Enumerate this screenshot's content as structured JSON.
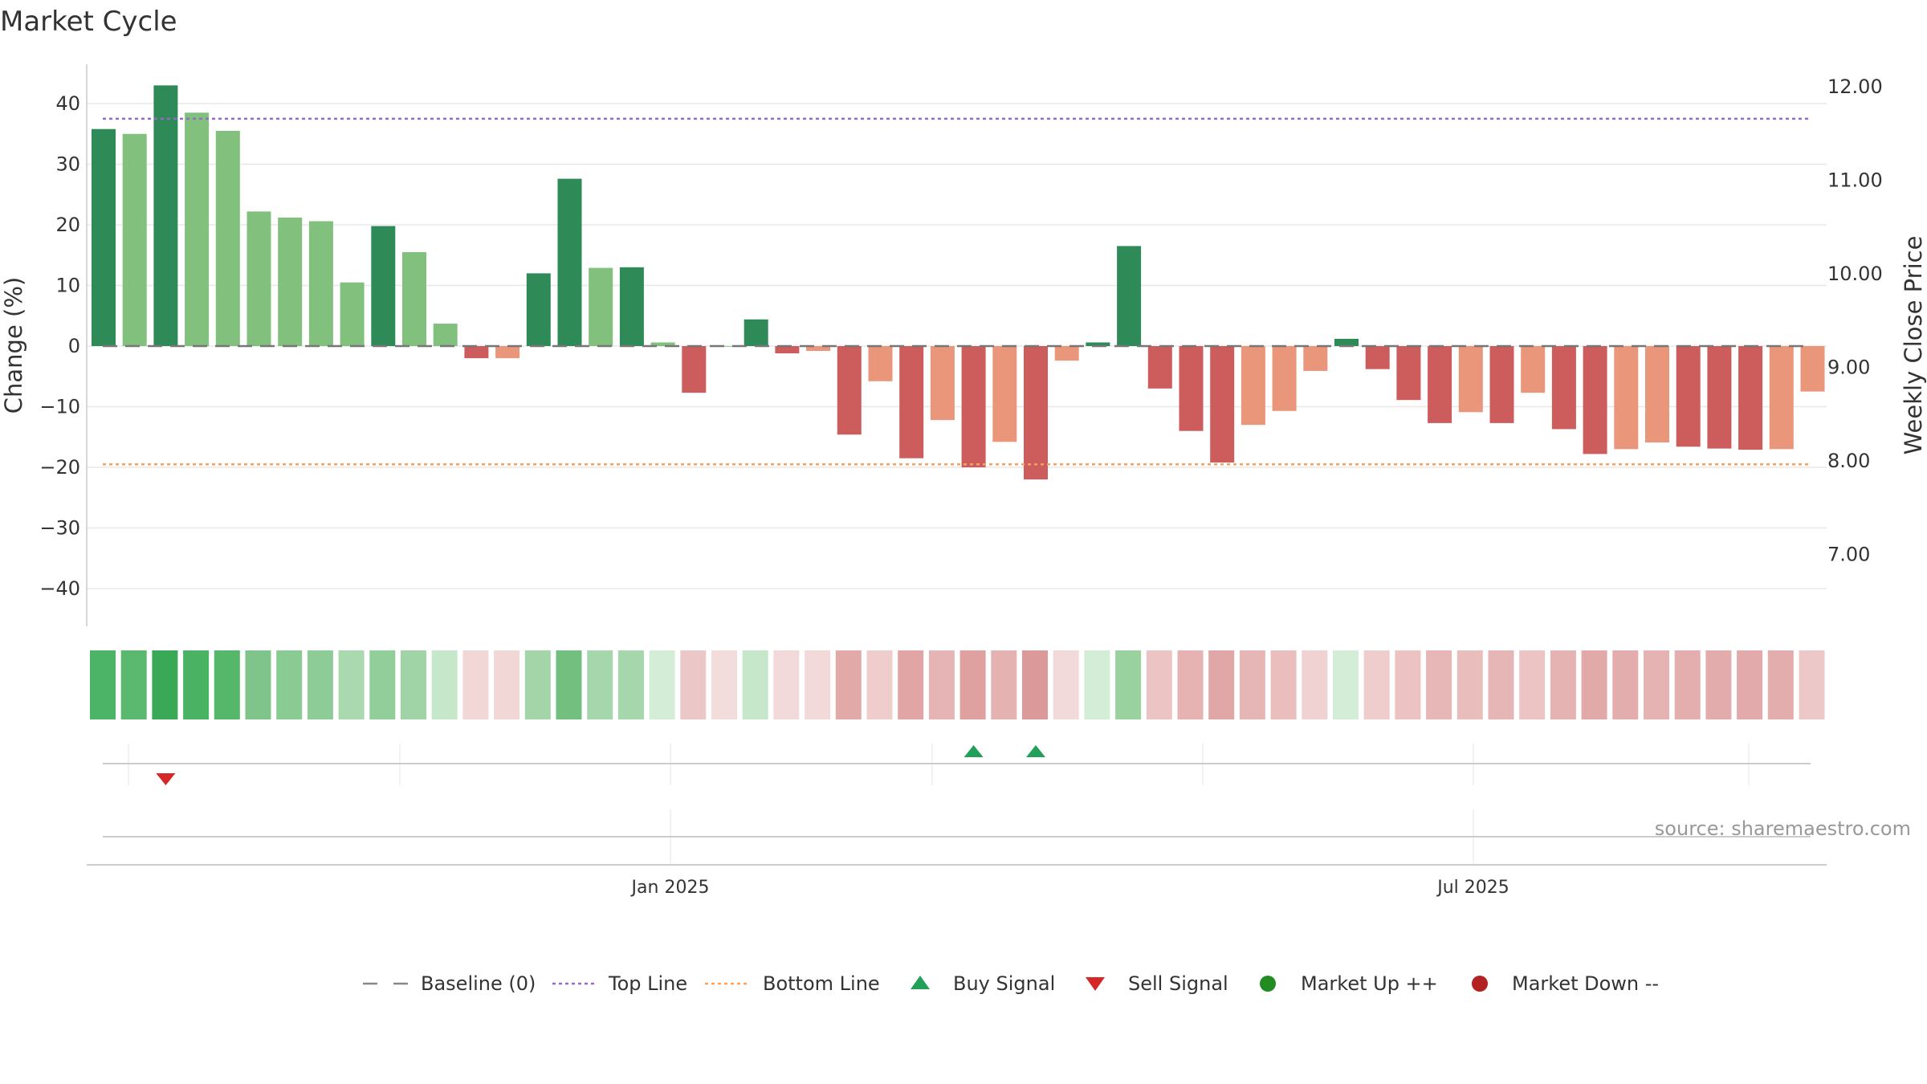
{
  "chart_data": {
    "type": "bar",
    "title": "Market Cycle",
    "ylabel_left": "Change (%)",
    "ylabel_right": "Weekly Close Price",
    "ylim_left": [
      -46,
      47
    ],
    "left_ticks": [
      40,
      30,
      20,
      10,
      0,
      -10,
      -20,
      -30,
      -40
    ],
    "left_tick_labels": [
      "40",
      "30",
      "20",
      "10",
      "0",
      "−10",
      "−20",
      "−30",
      "−40"
    ],
    "right_ticks": [
      12,
      11,
      10,
      9,
      8,
      7
    ],
    "right_tick_labels": [
      "12.00",
      "11.00",
      "10.00",
      "9.00",
      "8.00",
      "7.00"
    ],
    "x_tick_labels": [
      "Jan 2025",
      "Jul 2025"
    ],
    "top_line": 37.5,
    "bottom_line": -19.5,
    "values": [
      35.8,
      35,
      43,
      38.5,
      35.5,
      22.2,
      21.2,
      20.6,
      10.5,
      19.8,
      15.5,
      3.7,
      -2,
      -2,
      12,
      27.6,
      12.9,
      13,
      0.6,
      -7.7,
      0,
      4.4,
      -1.2,
      -0.8,
      -14.6,
      -5.8,
      -18.5,
      -12.2,
      -20,
      -15.8,
      -22,
      -2.4,
      0.6,
      16.5,
      -7,
      -14,
      -19.2,
      -13,
      -10.7,
      -4.1,
      1.2,
      -3.8,
      -8.9,
      -12.7,
      -10.9,
      -12.7,
      -7.7,
      -13.7,
      -17.8,
      -17,
      -15.9,
      -16.6,
      -16.9,
      -17.1,
      -17,
      -7.5
    ],
    "bar_colors": [
      "#2e8b57",
      "#82c07e",
      "#2e8b57",
      "#82c07e",
      "#82c07e",
      "#82c07e",
      "#82c07e",
      "#82c07e",
      "#82c07e",
      "#2e8b57",
      "#82c07e",
      "#82c07e",
      "#cd5c5c",
      "#e9967a",
      "#2e8b57",
      "#2e8b57",
      "#82c07e",
      "#2e8b57",
      "#82c07e",
      "#cd5c5c",
      "#82c07e",
      "#2e8b57",
      "#cd5c5c",
      "#e9967a",
      "#cd5c5c",
      "#e9967a",
      "#cd5c5c",
      "#e9967a",
      "#cd5c5c",
      "#e9967a",
      "#cd5c5c",
      "#e9967a",
      "#2e8b57",
      "#2e8b57",
      "#cd5c5c",
      "#cd5c5c",
      "#cd5c5c",
      "#e9967a",
      "#e9967a",
      "#e9967a",
      "#2e8b57",
      "#cd5c5c",
      "#cd5c5c",
      "#cd5c5c",
      "#e9967a",
      "#cd5c5c",
      "#e9967a",
      "#cd5c5c",
      "#cd5c5c",
      "#e9967a",
      "#e9967a",
      "#cd5c5c",
      "#cd5c5c",
      "#cd5c5c",
      "#e9967a",
      "#e9967a"
    ],
    "strip_colors": [
      "#4cb466",
      "#5bb96f",
      "#3aa957",
      "#4ab263",
      "#55b76a",
      "#7fc48b",
      "#8acb93",
      "#8dcc96",
      "#abd9af",
      "#91ce9a",
      "#a0d4a6",
      "#c7e7cb",
      "#f2d7d7",
      "#f2d7d7",
      "#a4d5a9",
      "#72bf80",
      "#a6d6ab",
      "#a6d6ab",
      "#d4edd7",
      "#ecc7c7",
      "#f3dcdc",
      "#c7e7cb",
      "#f3dada",
      "#f3dada",
      "#e2a9a9",
      "#f0cdcd",
      "#e1a5a5",
      "#e6b4b4",
      "#dfa0a0",
      "#e5b2b2",
      "#dc9999",
      "#f3dada",
      "#d4edd7",
      "#99d19f",
      "#edc4c4",
      "#e6b2b2",
      "#e1a6a6",
      "#e6b6b6",
      "#ebbebe",
      "#f1d2d2",
      "#d4edd7",
      "#f0cdcd",
      "#ecc2c2",
      "#e7b6b6",
      "#eabdbd",
      "#e6b6b6",
      "#edc4c4",
      "#e6b3b3",
      "#e2a9a9",
      "#e4adad",
      "#e6b3b3",
      "#e4aeae",
      "#e3acac",
      "#e2aaaa",
      "#e3adad",
      "#edc8c8"
    ],
    "buy_signals": [
      28,
      30
    ],
    "sell_signals": [
      2
    ],
    "legend": [
      {
        "label": "Baseline (0)",
        "kind": "dash",
        "color": "#888888"
      },
      {
        "label": "Top Line",
        "kind": "dot",
        "color": "#9966cc"
      },
      {
        "label": "Bottom Line",
        "kind": "dot",
        "color": "#f4a460"
      },
      {
        "label": "Buy Signal",
        "kind": "triangle-up",
        "color": "#22a05a"
      },
      {
        "label": "Sell Signal",
        "kind": "triangle-down",
        "color": "#d62728"
      },
      {
        "label": "Market Up ++",
        "kind": "circle",
        "color": "#228b22"
      },
      {
        "label": "Market Down --",
        "kind": "circle",
        "color": "#b22222"
      }
    ],
    "source": "source: sharemaestro.com"
  }
}
